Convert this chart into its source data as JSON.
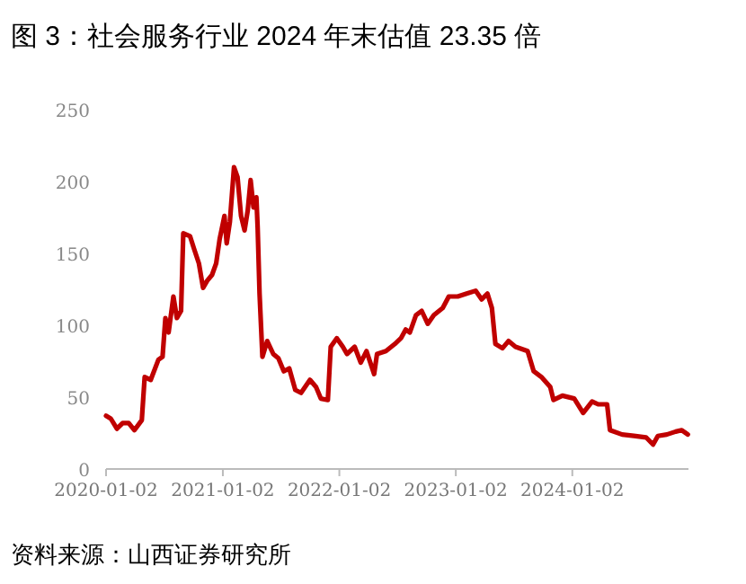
{
  "chart_data": {
    "type": "line",
    "title": "图 3：社会服务行业 2024 年末估值 23.35 倍",
    "annotations": [
      "资料来源：山西证券研究所"
    ],
    "x": [
      "2020-01-02",
      "2020-01-17",
      "2020-02-05",
      "2020-02-23",
      "2020-03-13",
      "2020-03-31",
      "2020-04-23",
      "2020-05-02",
      "2020-05-21",
      "2020-06-14",
      "2020-06-27",
      "2020-07-06",
      "2020-07-16",
      "2020-07-31",
      "2020-08-11",
      "2020-08-24",
      "2020-08-31",
      "2020-09-21",
      "2020-10-04",
      "2020-10-19",
      "2020-11-01",
      "2020-11-14",
      "2020-11-29",
      "2020-12-12",
      "2020-12-23",
      "2021-01-07",
      "2021-01-14",
      "2021-01-24",
      "2021-02-06",
      "2021-02-17",
      "2021-02-28",
      "2021-03-11",
      "2021-03-21",
      "2021-03-30",
      "2021-04-08",
      "2021-04-17",
      "2021-04-21",
      "2021-04-27",
      "2021-05-06",
      "2021-05-21",
      "2021-06-09",
      "2021-06-25",
      "2021-07-12",
      "2021-07-29",
      "2021-08-17",
      "2021-09-04",
      "2021-10-02",
      "2021-10-21",
      "2021-11-05",
      "2021-11-27",
      "2021-12-06",
      "2021-12-25",
      "2022-01-13",
      "2022-01-26",
      "2022-02-19",
      "2022-03-10",
      "2022-03-28",
      "2022-04-21",
      "2022-04-30",
      "2022-05-28",
      "2022-06-25",
      "2022-07-14",
      "2022-07-29",
      "2022-08-11",
      "2022-08-30",
      "2022-09-17",
      "2022-10-06",
      "2022-10-25",
      "2022-11-22",
      "2022-12-11",
      "2023-01-08",
      "2023-02-05",
      "2023-03-05",
      "2023-03-24",
      "2023-04-11",
      "2023-04-25",
      "2023-05-06",
      "2023-05-28",
      "2023-06-16",
      "2023-07-08",
      "2023-08-15",
      "2023-09-03",
      "2023-09-27",
      "2023-10-25",
      "2023-11-04",
      "2023-12-02",
      "2024-01-08",
      "2024-02-05",
      "2024-03-04",
      "2024-03-23",
      "2024-04-20",
      "2024-04-29",
      "2024-06-06",
      "2024-07-13",
      "2024-08-20",
      "2024-09-11",
      "2024-09-26",
      "2024-10-24",
      "2024-11-21",
      "2024-12-10",
      "2024-12-29"
    ],
    "series": [
      {
        "color": "#c00000",
        "values": [
          37,
          35,
          28,
          32,
          32,
          27,
          34,
          64,
          62,
          76,
          78,
          105,
          95,
          120,
          105,
          110,
          164,
          162,
          153,
          143,
          126,
          131,
          135,
          143,
          160,
          176,
          157,
          172,
          210,
          203,
          176,
          166,
          180,
          201,
          182,
          189,
          168,
          122,
          78,
          89,
          80,
          77,
          68,
          70,
          55,
          53,
          62,
          57,
          49,
          48,
          85,
          91,
          85,
          80,
          85,
          74,
          82,
          66,
          80,
          82,
          87,
          91,
          97,
          95,
          107,
          110,
          101,
          107,
          112,
          120,
          120,
          122,
          124,
          118,
          122,
          112,
          87,
          84,
          89,
          85,
          82,
          68,
          64,
          57,
          48,
          51,
          49,
          39,
          47,
          45,
          45,
          27,
          24,
          23,
          22,
          17,
          23,
          24,
          26,
          27,
          24
        ]
      }
    ],
    "xlim": [
      "2020-01-02",
      "2024-12-31"
    ],
    "xticks": [
      "2020-01-02",
      "2021-01-02",
      "2022-01-02",
      "2023-01-02",
      "2024-01-02"
    ],
    "ylim": [
      0,
      250
    ],
    "yticks": [
      0,
      50,
      100,
      150,
      200,
      250
    ],
    "grid": false,
    "marker": "none",
    "line_style": "solid"
  }
}
